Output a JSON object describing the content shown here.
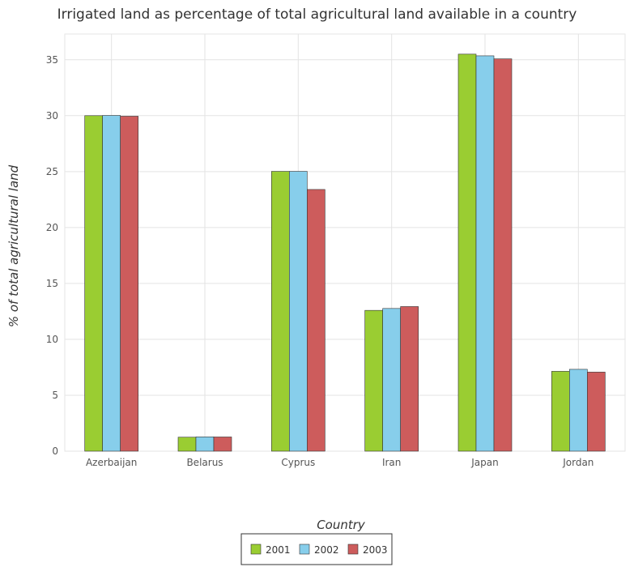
{
  "chart_data": {
    "type": "bar",
    "title": "Irrigated land as percentage of total agricultural land available in a country",
    "xlabel": "Country",
    "ylabel": "% of total agricultural land",
    "categories": [
      "Azerbaijan",
      "Belarus",
      "Cyprus",
      "Iran",
      "Japan",
      "Jordan"
    ],
    "series": [
      {
        "name": "2001",
        "color": "#9acd32",
        "values": [
          30.0,
          1.25,
          25.02,
          12.59,
          35.5,
          7.14
        ]
      },
      {
        "name": "2002",
        "color": "#87ceeb",
        "values": [
          30.02,
          1.28,
          25.02,
          12.76,
          35.35,
          7.32
        ]
      },
      {
        "name": "2003",
        "color": "#cd5c5c",
        "values": [
          29.95,
          1.27,
          23.4,
          12.93,
          35.08,
          7.07
        ]
      }
    ],
    "yticks": [
      0,
      5,
      10,
      15,
      20,
      25,
      30,
      35
    ],
    "ylim": [
      0,
      37.3
    ],
    "grid": true,
    "legend_position": "bottom-center"
  }
}
